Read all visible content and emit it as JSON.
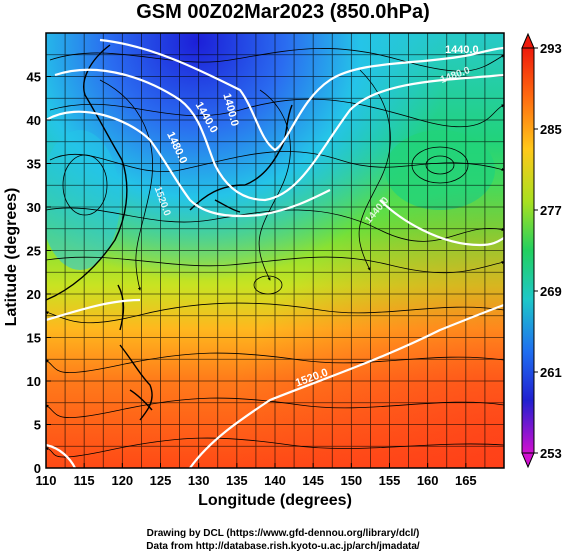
{
  "title": "GSM 00Z02Mar2023 (850.0hPa)",
  "xaxis": {
    "label": "Longitude (degrees)",
    "range": [
      110,
      170
    ],
    "ticks": [
      "110",
      "115",
      "120",
      "125",
      "130",
      "135",
      "140",
      "145",
      "150",
      "155",
      "160",
      "165"
    ]
  },
  "yaxis": {
    "label": "Latitude  (degrees)",
    "range": [
      0,
      50
    ],
    "ticks": [
      "0",
      "5",
      "10",
      "15",
      "20",
      "25",
      "30",
      "35",
      "40",
      "45"
    ]
  },
  "colorbar": {
    "ticks": [
      "293",
      "285",
      "277",
      "269",
      "261",
      "253"
    ],
    "range": [
      253,
      293
    ]
  },
  "contour_labels": [
    "1440.0",
    "1400.0",
    "1440.0",
    "1480.0",
    "1520.0",
    "1480.0",
    "1440.0",
    "1520.0"
  ],
  "credits": [
    "Drawing by DCL (https://www.gfd-dennou.org/library/dcl/)",
    "Data from http://database.rish.kyoto-u.ac.jp/arch/jmadata/"
  ]
}
